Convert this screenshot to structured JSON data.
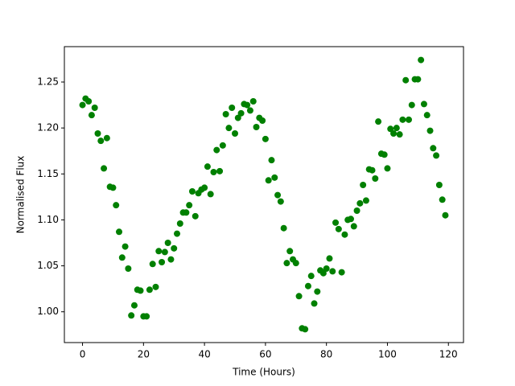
{
  "chart_data": {
    "type": "scatter",
    "xlabel": "Time (Hours)",
    "ylabel": "Normalised Flux",
    "color": "#008000",
    "x": [
      0,
      1,
      2,
      3,
      4,
      5,
      6,
      7,
      8,
      9,
      10,
      11,
      12,
      13,
      14,
      15,
      16,
      17,
      18,
      19,
      20,
      21,
      22,
      23,
      24,
      25,
      26,
      27,
      28,
      29,
      30,
      31,
      32,
      33,
      34,
      35,
      36,
      37,
      38,
      39,
      40,
      41,
      42,
      43,
      44,
      45,
      46,
      47,
      48,
      49,
      50,
      51,
      52,
      53,
      54,
      55,
      56,
      57,
      58,
      59,
      60,
      61,
      62,
      63,
      64,
      65,
      66,
      67,
      68,
      69,
      70,
      71,
      72,
      73,
      74,
      75,
      76,
      77,
      78,
      79,
      80,
      81,
      82,
      83,
      84,
      85,
      86,
      87,
      88,
      89,
      90,
      91,
      92,
      93,
      94,
      95,
      96,
      97,
      98,
      99,
      100,
      101,
      102,
      103,
      104,
      105,
      106,
      107,
      108,
      109,
      110,
      111,
      112,
      113,
      114,
      115,
      116,
      117,
      118,
      119
    ],
    "values": [
      1.225,
      1.232,
      1.229,
      1.214,
      1.222,
      1.194,
      1.186,
      1.156,
      1.189,
      1.136,
      1.135,
      1.116,
      1.087,
      1.059,
      1.071,
      1.047,
      0.996,
      1.007,
      1.024,
      1.023,
      0.995,
      0.995,
      1.024,
      1.052,
      1.027,
      1.066,
      1.054,
      1.065,
      1.075,
      1.057,
      1.069,
      1.085,
      1.096,
      1.108,
      1.108,
      1.116,
      1.131,
      1.104,
      1.129,
      1.133,
      1.135,
      1.158,
      1.128,
      1.152,
      1.176,
      1.153,
      1.181,
      1.215,
      1.2,
      1.222,
      1.194,
      1.211,
      1.216,
      1.226,
      1.225,
      1.219,
      1.229,
      1.201,
      1.211,
      1.208,
      1.188,
      1.143,
      1.165,
      1.146,
      1.127,
      1.12,
      1.091,
      1.053,
      1.066,
      1.057,
      1.053,
      1.017,
      0.982,
      0.981,
      1.028,
      1.039,
      1.009,
      1.022,
      1.045,
      1.042,
      1.047,
      1.058,
      1.044,
      1.097,
      1.09,
      1.043,
      1.084,
      1.1,
      1.101,
      1.093,
      1.11,
      1.118,
      1.138,
      1.121,
      1.155,
      1.154,
      1.145,
      1.207,
      1.172,
      1.171,
      1.156,
      1.199,
      1.194,
      1.2,
      1.193,
      1.209,
      1.252,
      1.209,
      1.225,
      1.253,
      1.253,
      1.274,
      1.226,
      1.214,
      1.197,
      1.178,
      1.17,
      1.138,
      1.122,
      1.105
    ],
    "xlim": [
      -5.95,
      124.95
    ],
    "xticks": [
      0,
      20,
      40,
      60,
      80,
      100,
      120
    ],
    "ylim": [
      0.9665,
      1.2885
    ],
    "yticks": [
      {
        "value": 1.0,
        "label": "1.00"
      },
      {
        "value": 1.05,
        "label": "1.05"
      },
      {
        "value": 1.1,
        "label": "1.10"
      },
      {
        "value": 1.15,
        "label": "1.15"
      },
      {
        "value": 1.2,
        "label": "1.20"
      },
      {
        "value": 1.25,
        "label": "1.25"
      }
    ],
    "grid": false
  }
}
